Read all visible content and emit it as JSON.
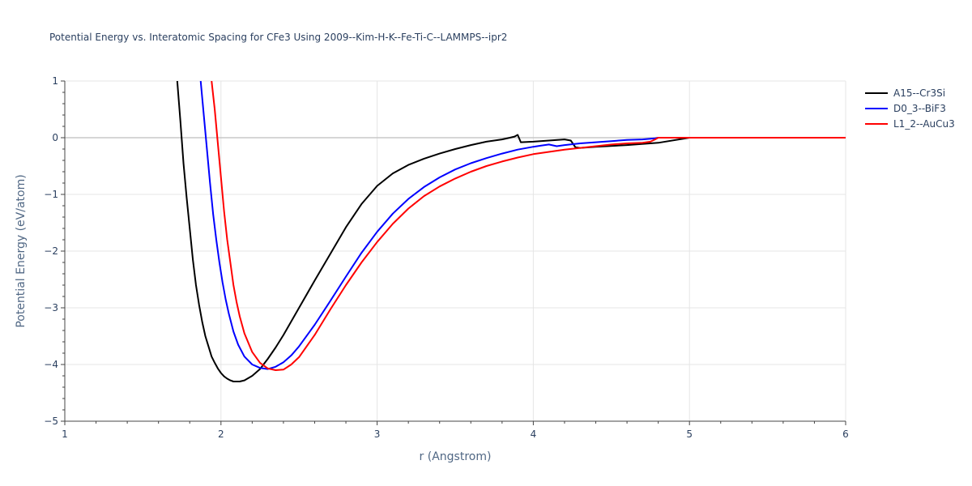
{
  "chart_data": {
    "type": "line",
    "title": "Potential Energy vs. Interatomic Spacing for CFe3 Using 2009--Kim-H-K--Fe-Ti-C--LAMMPS--ipr2",
    "xlabel": "r (Angstrom)",
    "ylabel": "Potential Energy (eV/atom)",
    "xlim": [
      1,
      6
    ],
    "ylim": [
      -5,
      1
    ],
    "x_ticks": [
      1,
      2,
      3,
      4,
      5,
      6
    ],
    "y_ticks": [
      1,
      0,
      -1,
      -2,
      -3,
      -4,
      -5
    ],
    "x_tick_labels": [
      "1",
      "2",
      "3",
      "4",
      "5",
      "6"
    ],
    "y_tick_labels": [
      "1",
      "0",
      "−1",
      "−2",
      "−3",
      "−4",
      "−5"
    ],
    "grid": true,
    "legend_position": "top-right",
    "series": [
      {
        "name": "A15--Cr3Si",
        "color": "#000000",
        "x": [
          1.72,
          1.74,
          1.76,
          1.78,
          1.8,
          1.82,
          1.84,
          1.86,
          1.88,
          1.9,
          1.92,
          1.94,
          1.96,
          1.98,
          2.0,
          2.02,
          2.04,
          2.06,
          2.08,
          2.1,
          2.12,
          2.15,
          2.2,
          2.25,
          2.3,
          2.35,
          2.4,
          2.5,
          2.6,
          2.7,
          2.8,
          2.9,
          3.0,
          3.1,
          3.2,
          3.3,
          3.4,
          3.5,
          3.6,
          3.7,
          3.8,
          3.85,
          3.88,
          3.9,
          3.92,
          4.0,
          4.1,
          4.2,
          4.24,
          4.27,
          4.3,
          4.4,
          4.6,
          4.8,
          5.0,
          5.5,
          6.0
        ],
        "y": [
          1.0,
          0.3,
          -0.45,
          -1.05,
          -1.6,
          -2.15,
          -2.6,
          -2.95,
          -3.25,
          -3.5,
          -3.68,
          -3.86,
          -3.97,
          -4.07,
          -4.15,
          -4.21,
          -4.25,
          -4.28,
          -4.3,
          -4.3,
          -4.3,
          -4.28,
          -4.2,
          -4.08,
          -3.9,
          -3.7,
          -3.48,
          -3.0,
          -2.52,
          -2.05,
          -1.58,
          -1.17,
          -0.85,
          -0.63,
          -0.48,
          -0.37,
          -0.28,
          -0.2,
          -0.13,
          -0.07,
          -0.03,
          0.0,
          0.02,
          0.05,
          -0.08,
          -0.07,
          -0.05,
          -0.03,
          -0.05,
          -0.17,
          -0.18,
          -0.16,
          -0.13,
          -0.09,
          0.0,
          0.0,
          0.0
        ]
      },
      {
        "name": "D0_3--BiF3",
        "color": "#0000ff",
        "x": [
          1.87,
          1.89,
          1.91,
          1.93,
          1.95,
          1.97,
          1.99,
          2.01,
          2.03,
          2.05,
          2.08,
          2.11,
          2.15,
          2.2,
          2.25,
          2.3,
          2.35,
          2.4,
          2.45,
          2.5,
          2.6,
          2.7,
          2.8,
          2.9,
          3.0,
          3.1,
          3.2,
          3.3,
          3.4,
          3.5,
          3.6,
          3.7,
          3.8,
          3.9,
          4.0,
          4.05,
          4.1,
          4.15,
          4.2,
          4.3,
          4.4,
          4.5,
          4.6,
          4.7,
          4.78,
          4.8,
          5.0,
          5.5,
          6.0
        ],
        "y": [
          1.0,
          0.4,
          -0.2,
          -0.8,
          -1.35,
          -1.8,
          -2.2,
          -2.55,
          -2.85,
          -3.1,
          -3.42,
          -3.65,
          -3.86,
          -4.0,
          -4.06,
          -4.08,
          -4.04,
          -3.96,
          -3.84,
          -3.68,
          -3.3,
          -2.88,
          -2.45,
          -2.03,
          -1.66,
          -1.34,
          -1.08,
          -0.87,
          -0.7,
          -0.56,
          -0.45,
          -0.36,
          -0.28,
          -0.21,
          -0.16,
          -0.14,
          -0.12,
          -0.15,
          -0.13,
          -0.1,
          -0.08,
          -0.06,
          -0.04,
          -0.03,
          -0.01,
          0.0,
          0.0,
          0.0,
          0.0
        ]
      },
      {
        "name": "L1_2--AuCu3",
        "color": "#ff0000",
        "x": [
          1.94,
          1.96,
          1.98,
          2.0,
          2.02,
          2.04,
          2.06,
          2.08,
          2.1,
          2.12,
          2.15,
          2.2,
          2.25,
          2.3,
          2.35,
          2.4,
          2.45,
          2.5,
          2.6,
          2.7,
          2.8,
          2.9,
          3.0,
          3.1,
          3.2,
          3.3,
          3.4,
          3.5,
          3.6,
          3.7,
          3.8,
          3.9,
          4.0,
          4.1,
          4.2,
          4.3,
          4.4,
          4.5,
          4.6,
          4.7,
          4.75,
          4.78,
          4.8,
          5.0,
          5.5,
          6.0
        ],
        "y": [
          1.0,
          0.5,
          -0.1,
          -0.7,
          -1.3,
          -1.8,
          -2.2,
          -2.6,
          -2.9,
          -3.15,
          -3.45,
          -3.78,
          -3.97,
          -4.07,
          -4.1,
          -4.09,
          -4.0,
          -3.87,
          -3.48,
          -3.03,
          -2.6,
          -2.2,
          -1.84,
          -1.52,
          -1.25,
          -1.03,
          -0.86,
          -0.72,
          -0.6,
          -0.5,
          -0.42,
          -0.35,
          -0.29,
          -0.25,
          -0.21,
          -0.18,
          -0.15,
          -0.12,
          -0.1,
          -0.09,
          -0.07,
          -0.03,
          0.0,
          0.0,
          0.0,
          0.0
        ]
      }
    ]
  }
}
